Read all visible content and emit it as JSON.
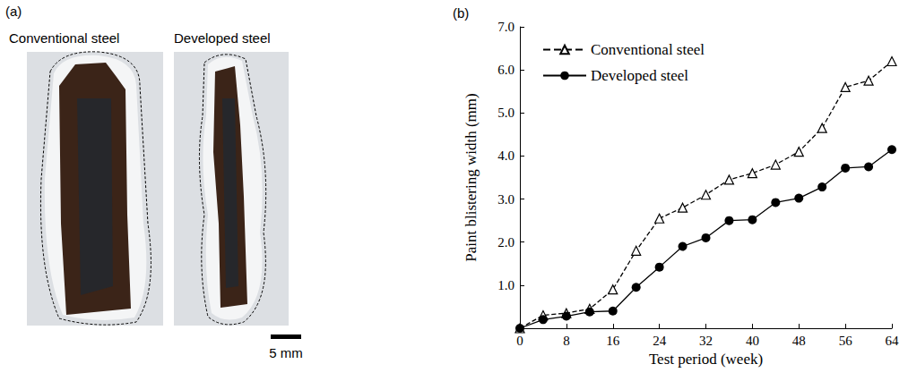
{
  "panel_a": {
    "label": "(a)",
    "samples": [
      "Conventional steel",
      "Developed steel"
    ],
    "scale_bar": "5 mm"
  },
  "chart_data": {
    "type": "line",
    "title": "(b)",
    "x_label": "Test period (week)",
    "y_label": "Paint blistering width (mm)",
    "x": [
      0,
      4,
      8,
      12,
      16,
      20,
      24,
      28,
      32,
      36,
      40,
      44,
      48,
      52,
      56,
      60,
      64
    ],
    "series": [
      {
        "name": "Conventional steel",
        "color": "#000000",
        "marker": "open_triangle",
        "line_style": "dashed",
        "values": [
          0,
          0.3,
          0.35,
          0.45,
          0.9,
          1.8,
          2.55,
          2.8,
          3.1,
          3.45,
          3.6,
          3.8,
          4.1,
          4.65,
          5.6,
          5.75,
          6.2
        ]
      },
      {
        "name": "Developed steel",
        "color": "#000000",
        "marker": "circle",
        "line_style": "solid",
        "values": [
          0,
          0.2,
          0.28,
          0.38,
          0.4,
          0.95,
          1.42,
          1.9,
          2.1,
          2.5,
          2.52,
          2.92,
          3.02,
          3.28,
          3.72,
          3.75,
          4.15
        ]
      }
    ],
    "xlim": [
      0,
      64
    ],
    "xticks": [
      0,
      8,
      16,
      24,
      32,
      40,
      48,
      56,
      64
    ],
    "ylim": [
      0,
      7
    ],
    "yticks": [
      {
        "value": 1,
        "label": "1.0"
      },
      {
        "value": 2,
        "label": "2.0"
      },
      {
        "value": 3,
        "label": "3.0"
      },
      {
        "value": 4,
        "label": "4.0"
      },
      {
        "value": 5,
        "label": "5.0"
      },
      {
        "value": 6,
        "label": "6.0"
      },
      {
        "value": 7,
        "label": "7.0"
      }
    ],
    "grid": false,
    "legend": "top-left"
  }
}
